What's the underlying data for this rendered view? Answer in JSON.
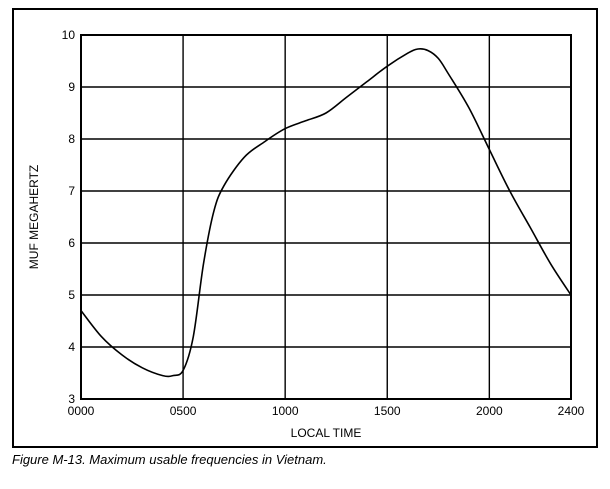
{
  "chart_data": {
    "type": "line",
    "title": "",
    "xlabel": "LOCAL TIME",
    "ylabel": "MUF MEGAHERTZ",
    "xlim": [
      0,
      2400
    ],
    "ylim": [
      3,
      10
    ],
    "x_ticks": [
      0,
      500,
      1000,
      1500,
      2000,
      2400
    ],
    "x_tick_labels": [
      "0000",
      "0500",
      "1000",
      "1500",
      "2000",
      "2400"
    ],
    "y_ticks": [
      3,
      4,
      5,
      6,
      7,
      8,
      9,
      10
    ],
    "y_tick_labels": [
      "3",
      "4",
      "5",
      "6",
      "7",
      "8",
      "9",
      "10"
    ],
    "grid": true,
    "legend": "none",
    "series": [
      {
        "color": "#000000",
        "x": [
          0,
          100,
          200,
          300,
          400,
          450,
          500,
          550,
          600,
          650,
          700,
          800,
          900,
          1000,
          1100,
          1200,
          1300,
          1400,
          1500,
          1600,
          1650,
          1700,
          1750,
          1800,
          1900,
          2000,
          2100,
          2200,
          2300,
          2400
        ],
        "y": [
          4.7,
          4.2,
          3.85,
          3.6,
          3.45,
          3.45,
          3.55,
          4.2,
          5.6,
          6.6,
          7.1,
          7.65,
          7.95,
          8.2,
          8.35,
          8.5,
          8.8,
          9.1,
          9.4,
          9.65,
          9.73,
          9.7,
          9.55,
          9.25,
          8.6,
          7.8,
          7.0,
          6.3,
          5.6,
          5.0
        ]
      }
    ]
  },
  "caption": "Figure M-13. Maximum usable frequencies in Vietnam."
}
